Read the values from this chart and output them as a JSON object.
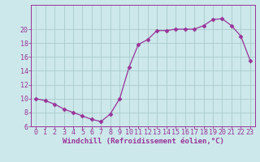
{
  "x": [
    0,
    1,
    2,
    3,
    4,
    5,
    6,
    7,
    8,
    9,
    10,
    11,
    12,
    13,
    14,
    15,
    16,
    17,
    18,
    19,
    20,
    21,
    22,
    23
  ],
  "y": [
    10,
    9.7,
    9.2,
    8.5,
    8.0,
    7.5,
    7.0,
    6.7,
    7.8,
    10.0,
    14.5,
    17.8,
    18.5,
    19.8,
    19.8,
    20.0,
    20.0,
    20.0,
    20.5,
    21.4,
    21.5,
    20.5,
    19.0,
    15.5
  ],
  "line_color": "#993399",
  "marker": "D",
  "marker_size": 2.5,
  "bg_color": "#cce8ea",
  "grid_color": "#aacccc",
  "xlabel": "Windchill (Refroidissement éolien,°C)",
  "xlabel_color": "#993399",
  "tick_color": "#993399",
  "axis_color": "#993399",
  "ylim": [
    6,
    22
  ],
  "xlim": [
    -0.5,
    23.5
  ],
  "yticks": [
    6,
    8,
    10,
    12,
    14,
    16,
    18,
    20
  ],
  "xticks": [
    0,
    1,
    2,
    3,
    4,
    5,
    6,
    7,
    8,
    9,
    10,
    11,
    12,
    13,
    14,
    15,
    16,
    17,
    18,
    19,
    20,
    21,
    22,
    23
  ],
  "tick_fontsize": 6.0,
  "xlabel_fontsize": 6.5
}
